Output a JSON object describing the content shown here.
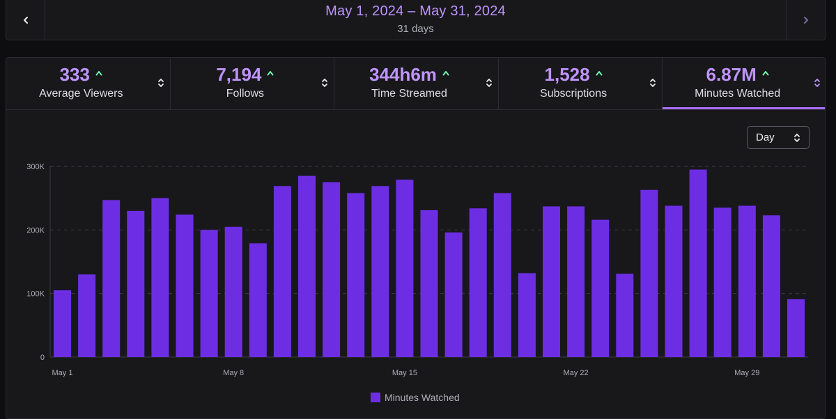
{
  "date_range": {
    "range_label": "May 1, 2024 – May 31, 2024",
    "days_label": "31 days",
    "prev_icon": "chevron-left-icon",
    "next_icon": "chevron-right-icon"
  },
  "stats": [
    {
      "value": "333",
      "label": "Average Viewers",
      "trend": "up",
      "active": false
    },
    {
      "value": "7,194",
      "label": "Follows",
      "trend": "up",
      "active": false
    },
    {
      "value": "344h6m",
      "label": "Time Streamed",
      "trend": "up",
      "active": false
    },
    {
      "value": "1,528",
      "label": "Subscriptions",
      "trend": "up",
      "active": false
    },
    {
      "value": "6.87M",
      "label": "Minutes Watched",
      "trend": "up",
      "active": true
    }
  ],
  "granularity": {
    "selected": "Day",
    "icon": "up-down-chevron-icon"
  },
  "colors": {
    "accent": "#bf94ff",
    "bar": "#6d2ee3",
    "trend_up": "#6ef5a8",
    "active_tab": "#a970ff"
  },
  "chart_data": {
    "type": "bar",
    "series_name": "Minutes Watched",
    "categories": [
      "May 1",
      "May 2",
      "May 3",
      "May 4",
      "May 5",
      "May 6",
      "May 7",
      "May 8",
      "May 9",
      "May 10",
      "May 11",
      "May 12",
      "May 13",
      "May 14",
      "May 15",
      "May 16",
      "May 17",
      "May 18",
      "May 19",
      "May 20",
      "May 21",
      "May 22",
      "May 23",
      "May 24",
      "May 25",
      "May 26",
      "May 27",
      "May 28",
      "May 29",
      "May 30",
      "May 31"
    ],
    "values": [
      105000,
      130000,
      247000,
      230000,
      250000,
      224000,
      200000,
      205000,
      179000,
      269000,
      285000,
      275000,
      258000,
      269000,
      279000,
      231000,
      196000,
      234000,
      258000,
      132000,
      237000,
      237000,
      216000,
      131000,
      263000,
      238000,
      295000,
      235000,
      238000,
      223000,
      91000
    ],
    "x_tick_labels": [
      "May 1",
      "May 8",
      "May 15",
      "May 22",
      "May 29"
    ],
    "x_tick_indices": [
      0,
      7,
      14,
      21,
      28
    ],
    "y_ticks": [
      0,
      100000,
      200000,
      300000
    ],
    "y_tick_labels": [
      "0",
      "100K",
      "200K",
      "300K"
    ],
    "ylim": [
      0,
      300000
    ],
    "grid": true,
    "legend": "bottom-center",
    "legend_label": "Minutes Watched"
  }
}
